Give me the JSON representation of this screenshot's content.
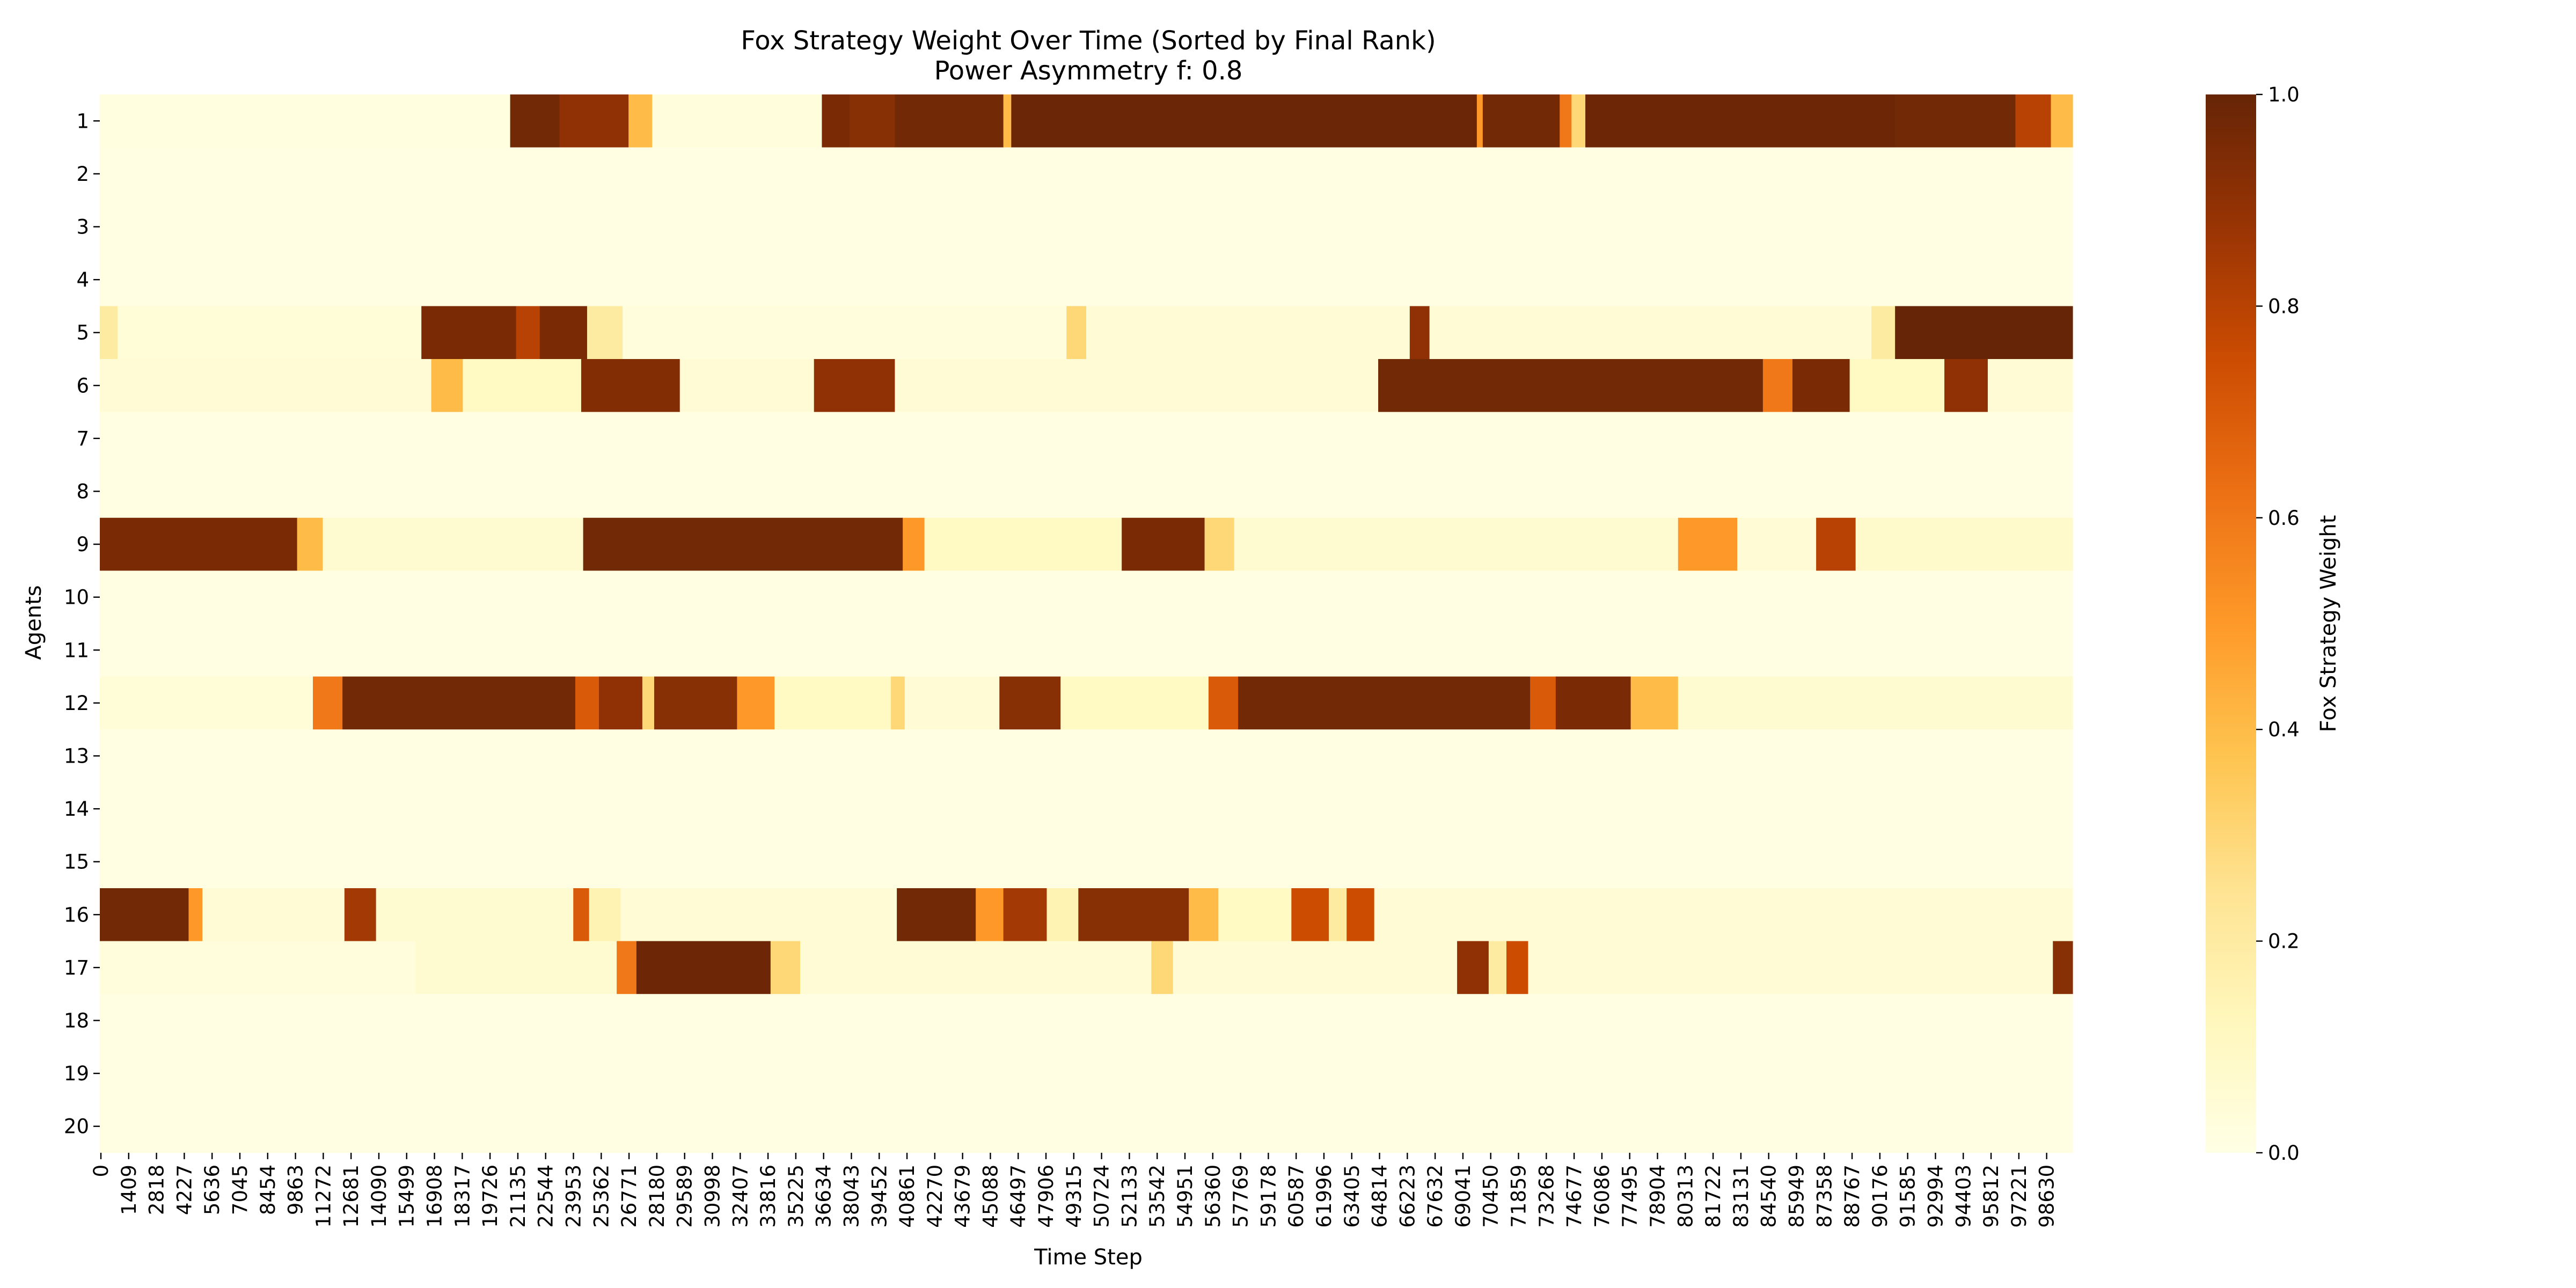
{
  "chart_data": {
    "type": "heatmap",
    "title": "Fox Strategy Weight Over Time (Sorted by Final Rank)",
    "subtitle": "Power Asymmetry f: 0.8",
    "xlabel": "Time Step",
    "ylabel": "Agents",
    "colorbar_label": "Fox Strategy Weight",
    "colorbar_ticks": [
      "0.0",
      "0.2",
      "0.4",
      "0.6",
      "0.8",
      "1.0"
    ],
    "colorbar_range": [
      0.0,
      1.0
    ],
    "colormap": [
      "#ffffe5",
      "#fff7bc",
      "#fee391",
      "#fec44f",
      "#fe9929",
      "#ec7014",
      "#cc4c02",
      "#993404",
      "#662506"
    ],
    "x_range": [
      0,
      100000
    ],
    "x_ticks": [
      "0",
      "1409",
      "2818",
      "4227",
      "5636",
      "7045",
      "8454",
      "9863",
      "11272",
      "12681",
      "14090",
      "15499",
      "16908",
      "18317",
      "19726",
      "21135",
      "22544",
      "23953",
      "25362",
      "26771",
      "28180",
      "29589",
      "30998",
      "32407",
      "33816",
      "35225",
      "36634",
      "38043",
      "39452",
      "40861",
      "42270",
      "43679",
      "45088",
      "46497",
      "47906",
      "49315",
      "50724",
      "52133",
      "53542",
      "54951",
      "56360",
      "57769",
      "59178",
      "60587",
      "61996",
      "63405",
      "64814",
      "66223",
      "67632",
      "69041",
      "70450",
      "71859",
      "73268",
      "74677",
      "76086",
      "77495",
      "78904",
      "80313",
      "81722",
      "83131",
      "84540",
      "85949",
      "87358",
      "88767",
      "90176",
      "91585",
      "92994",
      "94403",
      "95812",
      "97221",
      "98630"
    ],
    "agents": [
      "1",
      "2",
      "3",
      "4",
      "5",
      "6",
      "7",
      "8",
      "9",
      "10",
      "11",
      "12",
      "13",
      "14",
      "15",
      "16",
      "17",
      "18",
      "19",
      "20"
    ],
    "rows": [
      {
        "agent": "1",
        "segments": [
          [
            0,
            20800,
            0.02
          ],
          [
            20800,
            23300,
            0.97
          ],
          [
            23300,
            26800,
            0.9
          ],
          [
            26800,
            28000,
            0.4
          ],
          [
            28000,
            36600,
            0.03
          ],
          [
            36600,
            38000,
            0.95
          ],
          [
            38000,
            40300,
            0.92
          ],
          [
            40300,
            45800,
            0.97
          ],
          [
            45800,
            46200,
            0.4
          ],
          [
            46200,
            69800,
            0.99
          ],
          [
            69800,
            70100,
            0.5
          ],
          [
            70100,
            74000,
            0.97
          ],
          [
            74000,
            74600,
            0.6
          ],
          [
            74600,
            75300,
            0.3
          ],
          [
            75300,
            91000,
            0.98
          ],
          [
            91000,
            97100,
            0.97
          ],
          [
            97100,
            98900,
            0.8
          ],
          [
            98900,
            100000,
            0.4
          ]
        ]
      },
      {
        "agent": "2",
        "segments": [
          [
            0,
            100000,
            0.01
          ]
        ]
      },
      {
        "agent": "3",
        "segments": [
          [
            0,
            100000,
            0.01
          ]
        ]
      },
      {
        "agent": "4",
        "segments": [
          [
            0,
            100000,
            0.01
          ]
        ]
      },
      {
        "agent": "5",
        "segments": [
          [
            0,
            900,
            0.2
          ],
          [
            900,
            16300,
            0.04
          ],
          [
            16300,
            21100,
            0.95
          ],
          [
            21100,
            22300,
            0.8
          ],
          [
            22300,
            24700,
            0.95
          ],
          [
            24700,
            26500,
            0.2
          ],
          [
            26500,
            49000,
            0.03
          ],
          [
            49000,
            50000,
            0.3
          ],
          [
            50000,
            66400,
            0.05
          ],
          [
            66400,
            67400,
            0.9
          ],
          [
            67400,
            89800,
            0.05
          ],
          [
            89800,
            91000,
            0.2
          ],
          [
            91000,
            100000,
            1.0
          ]
        ]
      },
      {
        "agent": "6",
        "segments": [
          [
            0,
            16800,
            0.05
          ],
          [
            16800,
            18400,
            0.4
          ],
          [
            18400,
            24400,
            0.1
          ],
          [
            24400,
            29400,
            0.93
          ],
          [
            29400,
            36200,
            0.05
          ],
          [
            36200,
            40300,
            0.9
          ],
          [
            40300,
            64800,
            0.05
          ],
          [
            64800,
            84300,
            0.97
          ],
          [
            84300,
            85800,
            0.6
          ],
          [
            85800,
            88700,
            0.95
          ],
          [
            88700,
            93500,
            0.1
          ],
          [
            93500,
            95700,
            0.9
          ],
          [
            95700,
            100000,
            0.05
          ]
        ]
      },
      {
        "agent": "7",
        "segments": [
          [
            0,
            100000,
            0.01
          ]
        ]
      },
      {
        "agent": "8",
        "segments": [
          [
            0,
            100000,
            0.01
          ]
        ]
      },
      {
        "agent": "9",
        "segments": [
          [
            0,
            10000,
            0.95
          ],
          [
            10000,
            11300,
            0.4
          ],
          [
            11300,
            24500,
            0.06
          ],
          [
            24500,
            40700,
            0.97
          ],
          [
            40700,
            41800,
            0.5
          ],
          [
            41800,
            51800,
            0.1
          ],
          [
            51800,
            56000,
            0.95
          ],
          [
            56000,
            57500,
            0.3
          ],
          [
            57500,
            80000,
            0.06
          ],
          [
            80000,
            83000,
            0.5
          ],
          [
            83000,
            87000,
            0.05
          ],
          [
            87000,
            89000,
            0.8
          ],
          [
            89000,
            100000,
            0.08
          ]
        ]
      },
      {
        "agent": "10",
        "segments": [
          [
            0,
            100000,
            0.01
          ]
        ]
      },
      {
        "agent": "11",
        "segments": [
          [
            0,
            100000,
            0.01
          ]
        ]
      },
      {
        "agent": "12",
        "segments": [
          [
            0,
            10800,
            0.04
          ],
          [
            10800,
            12300,
            0.6
          ],
          [
            12300,
            24100,
            0.97
          ],
          [
            24100,
            25300,
            0.7
          ],
          [
            25300,
            27500,
            0.9
          ],
          [
            27500,
            28100,
            0.3
          ],
          [
            28100,
            32300,
            0.92
          ],
          [
            32300,
            34200,
            0.5
          ],
          [
            34200,
            40100,
            0.1
          ],
          [
            40100,
            40800,
            0.3
          ],
          [
            40800,
            45600,
            0.05
          ],
          [
            45600,
            48700,
            0.92
          ],
          [
            48700,
            56200,
            0.1
          ],
          [
            56200,
            57700,
            0.7
          ],
          [
            57700,
            72500,
            0.97
          ],
          [
            72500,
            73800,
            0.7
          ],
          [
            73800,
            77600,
            0.95
          ],
          [
            77600,
            80000,
            0.4
          ],
          [
            80000,
            100000,
            0.06
          ]
        ]
      },
      {
        "agent": "13",
        "segments": [
          [
            0,
            100000,
            0.01
          ]
        ]
      },
      {
        "agent": "14",
        "segments": [
          [
            0,
            100000,
            0.01
          ]
        ]
      },
      {
        "agent": "15",
        "segments": [
          [
            0,
            100000,
            0.01
          ]
        ]
      },
      {
        "agent": "16",
        "segments": [
          [
            0,
            4500,
            0.97
          ],
          [
            4500,
            5200,
            0.5
          ],
          [
            5200,
            12400,
            0.05
          ],
          [
            12400,
            14000,
            0.85
          ],
          [
            14000,
            24000,
            0.06
          ],
          [
            24000,
            24800,
            0.7
          ],
          [
            24800,
            26400,
            0.15
          ],
          [
            26400,
            40400,
            0.05
          ],
          [
            40400,
            44400,
            0.97
          ],
          [
            44400,
            45800,
            0.5
          ],
          [
            45800,
            48000,
            0.85
          ],
          [
            48000,
            49600,
            0.15
          ],
          [
            49600,
            55200,
            0.92
          ],
          [
            55200,
            56700,
            0.4
          ],
          [
            56700,
            60400,
            0.1
          ],
          [
            60400,
            62300,
            0.75
          ],
          [
            62300,
            63200,
            0.2
          ],
          [
            63200,
            64600,
            0.75
          ],
          [
            64600,
            100000,
            0.05
          ]
        ]
      },
      {
        "agent": "17",
        "segments": [
          [
            0,
            16000,
            0.03
          ],
          [
            16000,
            26200,
            0.06
          ],
          [
            26200,
            27200,
            0.6
          ],
          [
            27200,
            34000,
            0.98
          ],
          [
            34000,
            35500,
            0.3
          ],
          [
            35500,
            53300,
            0.05
          ],
          [
            53300,
            54400,
            0.3
          ],
          [
            54400,
            68800,
            0.05
          ],
          [
            68800,
            70400,
            0.9
          ],
          [
            70400,
            71300,
            0.2
          ],
          [
            71300,
            72400,
            0.75
          ],
          [
            72400,
            99000,
            0.05
          ],
          [
            99000,
            100000,
            0.92
          ]
        ]
      },
      {
        "agent": "18",
        "segments": [
          [
            0,
            100000,
            0.01
          ]
        ]
      },
      {
        "agent": "19",
        "segments": [
          [
            0,
            100000,
            0.01
          ]
        ]
      },
      {
        "agent": "20",
        "segments": [
          [
            0,
            100000,
            0.01
          ]
        ]
      }
    ]
  }
}
